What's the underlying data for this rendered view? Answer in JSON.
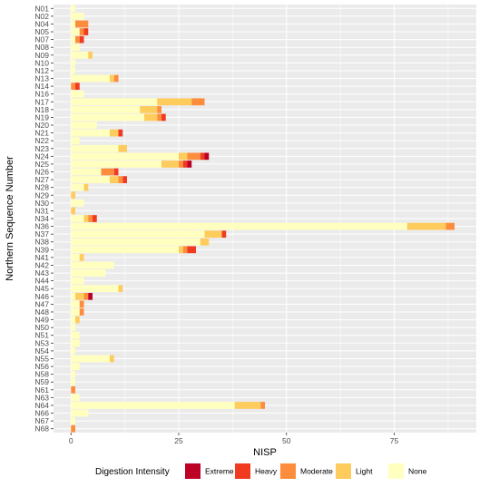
{
  "chart_data": {
    "type": "bar",
    "orientation": "horizontal",
    "stacked": true,
    "xlabel": "NISP",
    "ylabel": "Northern Sequence Number",
    "xlim": [
      0,
      90
    ],
    "x_ticks": [
      0,
      25,
      50,
      75
    ],
    "grid": true,
    "legend_position": "bottom",
    "legend_title": "Digestion Intensity",
    "categories": [
      "N01",
      "N02",
      "N04",
      "N05",
      "N07",
      "N08",
      "N09",
      "N10",
      "N12",
      "N13",
      "N14",
      "N16",
      "N17",
      "N18",
      "N19",
      "N20",
      "N21",
      "N22",
      "N23",
      "N24",
      "N25",
      "N26",
      "N27",
      "N28",
      "N29",
      "N30",
      "N31",
      "N34",
      "N36",
      "N37",
      "N38",
      "N39",
      "N41",
      "N42",
      "N43",
      "N44",
      "N45",
      "N46",
      "N47",
      "N48",
      "N49",
      "N50",
      "N51",
      "N53",
      "N54",
      "N55",
      "N56",
      "N58",
      "N59",
      "N61",
      "N63",
      "N64",
      "N66",
      "N67",
      "N68"
    ],
    "series": [
      {
        "name": "None",
        "color": "#FFFFBF",
        "values": [
          1,
          3,
          1,
          2,
          1,
          2,
          4,
          1,
          1,
          9,
          0,
          3,
          20,
          16,
          17,
          6,
          9,
          2,
          11,
          25,
          21,
          7,
          9,
          3,
          0,
          3,
          0,
          3,
          78,
          31,
          30,
          25,
          2,
          10,
          8,
          3,
          11,
          1,
          2,
          2,
          1,
          1,
          2,
          2,
          1,
          9,
          2,
          1,
          1,
          0,
          2,
          38,
          4,
          1,
          0
        ]
      },
      {
        "name": "Light",
        "color": "#FECC5C",
        "values": [
          0,
          0,
          0,
          0,
          0,
          0,
          1,
          0,
          0,
          1,
          0,
          0,
          8,
          4,
          3,
          0,
          2,
          0,
          2,
          2,
          4,
          0,
          2,
          1,
          1,
          0,
          1,
          1,
          9,
          4,
          2,
          1,
          1,
          0,
          0,
          0,
          1,
          2,
          0,
          0,
          1,
          0,
          0,
          0,
          0,
          1,
          0,
          0,
          0,
          0,
          0,
          6,
          0,
          0,
          0
        ]
      },
      {
        "name": "Moderate",
        "color": "#FD8D3C",
        "values": [
          0,
          0,
          3,
          1,
          1,
          0,
          0,
          0,
          0,
          1,
          1,
          0,
          3,
          1,
          1,
          0,
          0,
          0,
          0,
          3,
          1,
          3,
          1,
          0,
          0,
          0,
          0,
          1,
          2,
          0,
          0,
          1,
          0,
          0,
          0,
          0,
          0,
          1,
          1,
          1,
          0,
          0,
          0,
          0,
          0,
          0,
          0,
          0,
          0,
          1,
          0,
          1,
          0,
          0,
          1
        ]
      },
      {
        "name": "Heavy",
        "color": "#F03B20",
        "values": [
          0,
          0,
          0,
          1,
          1,
          0,
          0,
          0,
          0,
          0,
          1,
          0,
          0,
          0,
          1,
          0,
          1,
          0,
          0,
          1,
          1,
          1,
          1,
          0,
          0,
          0,
          0,
          1,
          0,
          1,
          0,
          2,
          0,
          0,
          0,
          0,
          0,
          0,
          0,
          0,
          0,
          0,
          0,
          0,
          0,
          0,
          0,
          0,
          0,
          0,
          0,
          0,
          0,
          0,
          0
        ]
      },
      {
        "name": "Extreme",
        "color": "#BD0026",
        "values": [
          0,
          0,
          0,
          0,
          0,
          0,
          0,
          0,
          0,
          0,
          0,
          0,
          0,
          0,
          0,
          0,
          0,
          0,
          0,
          1,
          1,
          0,
          0,
          0,
          0,
          0,
          0,
          0,
          0,
          0,
          0,
          0,
          0,
          0,
          0,
          0,
          0,
          1,
          0,
          0,
          0,
          0,
          0,
          0,
          0,
          0,
          0,
          0,
          0,
          0,
          0,
          0,
          0,
          0,
          0
        ]
      }
    ],
    "legend_order": [
      "Extreme",
      "Heavy",
      "Moderate",
      "Light",
      "None"
    ],
    "panel_background": "#EBEBEB",
    "grid_color": "#FFFFFF"
  }
}
